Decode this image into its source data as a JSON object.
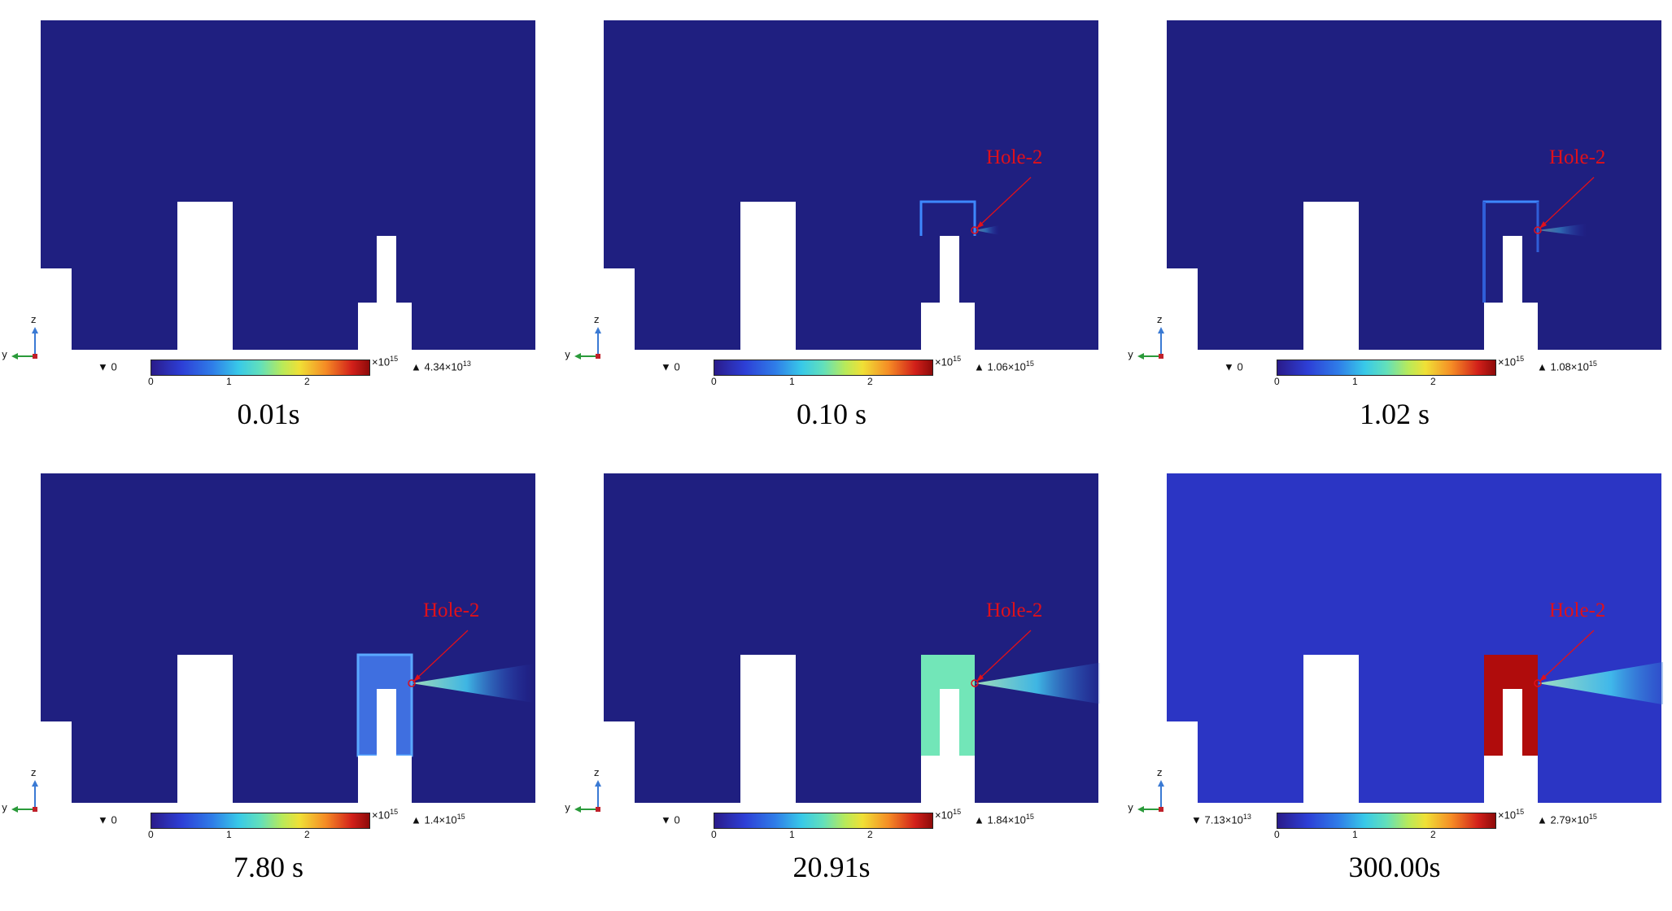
{
  "panels": [
    {
      "time": "0.01s",
      "min": "▼ 0",
      "max": "▲ 4.34×10",
      "max_exp": "13",
      "min_exp": "",
      "hole": "",
      "stage": 0
    },
    {
      "time": "0.10 s",
      "min": "▼ 0",
      "max": "▲ 1.06×10",
      "max_exp": "15",
      "min_exp": "",
      "hole": "Hole-2",
      "stage": 1
    },
    {
      "time": "1.02 s",
      "min": "▼ 0",
      "max": "▲ 1.08×10",
      "max_exp": "15",
      "min_exp": "",
      "hole": "Hole-2",
      "stage": 2
    },
    {
      "time": "7.80 s",
      "min": "▼ 0",
      "max": "▲ 1.4×10",
      "max_exp": "15",
      "min_exp": "",
      "hole": "Hole-2",
      "stage": 3
    },
    {
      "time": "20.91s",
      "min": "▼ 0",
      "max": "▲ 1.84×10",
      "max_exp": "15",
      "min_exp": "",
      "hole": "Hole-2",
      "stage": 4
    },
    {
      "time": "300.00s",
      "min": "▼ 7.13×10",
      "max": "▲ 2.79×10",
      "max_exp": "15",
      "min_exp": "13",
      "hole": "Hole-2",
      "stage": 5
    }
  ],
  "colorbar": {
    "ticks": [
      "0",
      "1",
      "2"
    ],
    "exponent_base": "×10",
    "exponent": "15"
  },
  "axis_labels": {
    "vertical": "z",
    "horizontal": "y"
  },
  "colors": {
    "background_field": "#1f1f80",
    "final_field": "#2b35c4",
    "hole_label": "#e0101a",
    "trap_final": "#b00c0c"
  }
}
